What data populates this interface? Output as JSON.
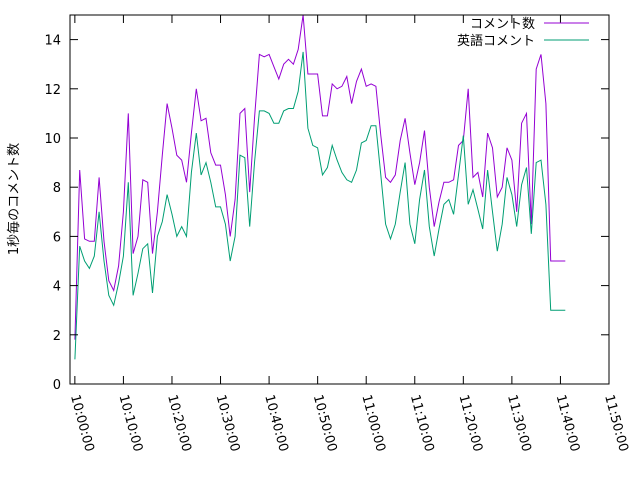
{
  "chart_data": {
    "type": "line",
    "title": "",
    "xlabel": "",
    "ylabel": "1秒毎のコメント数",
    "x_unit_seconds": 60,
    "x_start": "10:00:00",
    "x_ticks": [
      "10:00:00",
      "10:10:00",
      "10:20:00",
      "10:30:00",
      "10:40:00",
      "10:50:00",
      "11:00:00",
      "11:10:00",
      "11:20:00",
      "11:30:00",
      "11:40:00",
      "11:50:00"
    ],
    "x_range": [
      "09:59:00",
      "11:50:00"
    ],
    "ylim": [
      0,
      15
    ],
    "y_ticks": [
      0,
      2,
      4,
      6,
      8,
      10,
      12,
      14
    ],
    "legend_position": "top-right",
    "grid": false,
    "series": [
      {
        "name": "コメント数",
        "color": "#9400d3",
        "x": [
          "10:00:00",
          "10:01:00",
          "10:02:00",
          "10:03:00",
          "10:04:00",
          "10:05:00",
          "10:06:00",
          "10:07:00",
          "10:08:00",
          "10:09:00",
          "10:10:00",
          "10:11:00",
          "10:12:00",
          "10:13:00",
          "10:14:00",
          "10:15:00",
          "10:16:00",
          "10:17:00",
          "10:18:00",
          "10:19:00",
          "10:20:00",
          "10:21:00",
          "10:22:00",
          "10:23:00",
          "10:24:00",
          "10:25:00",
          "10:26:00",
          "10:27:00",
          "10:28:00",
          "10:29:00",
          "10:30:00",
          "10:31:00",
          "10:32:00",
          "10:33:00",
          "10:34:00",
          "10:35:00",
          "10:36:00",
          "10:37:00",
          "10:38:00",
          "10:39:00",
          "10:40:00",
          "10:41:00",
          "10:42:00",
          "10:43:00",
          "10:44:00",
          "10:45:00",
          "10:46:00",
          "10:47:00",
          "10:48:00",
          "10:49:00",
          "10:50:00",
          "10:51:00",
          "10:52:00",
          "10:53:00",
          "10:54:00",
          "10:55:00",
          "10:56:00",
          "10:57:00",
          "10:58:00",
          "10:59:00",
          "11:00:00",
          "11:01:00",
          "11:02:00",
          "11:03:00",
          "11:04:00",
          "11:05:00",
          "11:06:00",
          "11:07:00",
          "11:08:00",
          "11:09:00",
          "11:10:00",
          "11:11:00",
          "11:12:00",
          "11:13:00",
          "11:14:00",
          "11:15:00",
          "11:16:00",
          "11:17:00",
          "11:18:00",
          "11:19:00",
          "11:20:00",
          "11:21:00",
          "11:22:00",
          "11:23:00",
          "11:24:00",
          "11:25:00",
          "11:26:00",
          "11:27:00",
          "11:28:00",
          "11:29:00",
          "11:30:00",
          "11:31:00",
          "11:32:00",
          "11:33:00",
          "11:34:00",
          "11:35:00",
          "11:36:00",
          "11:37:00",
          "11:38:00",
          "11:39:00",
          "11:40:00",
          "11:41:00"
        ],
        "values": [
          1.8,
          8.7,
          5.9,
          5.8,
          5.8,
          8.4,
          5.8,
          4.2,
          3.8,
          4.8,
          7.0,
          11.0,
          5.3,
          6.0,
          8.3,
          8.2,
          5.3,
          7.0,
          9.3,
          11.4,
          10.4,
          9.3,
          9.1,
          8.2,
          10.2,
          12.0,
          10.7,
          10.8,
          9.4,
          8.9,
          8.9,
          7.7,
          6.0,
          7.5,
          11.0,
          11.2,
          7.8,
          10.8,
          13.4,
          13.3,
          13.4,
          12.9,
          12.4,
          13.0,
          13.2,
          13.0,
          13.6,
          15.0,
          12.6,
          12.6,
          12.6,
          10.9,
          10.9,
          12.2,
          12.0,
          12.1,
          12.5,
          11.4,
          12.3,
          12.8,
          12.1,
          12.2,
          12.1,
          10.1,
          8.4,
          8.2,
          8.5,
          9.9,
          10.8,
          9.4,
          8.1,
          9.0,
          10.3,
          8.0,
          6.4,
          7.4,
          8.2,
          8.2,
          8.3,
          9.7,
          9.9,
          12.0,
          8.4,
          8.6,
          7.6,
          10.2,
          9.6,
          7.6,
          8.0,
          9.6,
          9.1,
          7.0,
          10.6,
          11.0,
          6.5,
          12.8,
          13.4,
          11.4,
          5.0,
          5.0,
          5.0,
          5.0
        ]
      },
      {
        "name": "英語コメント",
        "color": "#009e73",
        "x": [
          "10:00:00",
          "10:01:00",
          "10:02:00",
          "10:03:00",
          "10:04:00",
          "10:05:00",
          "10:06:00",
          "10:07:00",
          "10:08:00",
          "10:09:00",
          "10:10:00",
          "10:11:00",
          "10:12:00",
          "10:13:00",
          "10:14:00",
          "10:15:00",
          "10:16:00",
          "10:17:00",
          "10:18:00",
          "10:19:00",
          "10:20:00",
          "10:21:00",
          "10:22:00",
          "10:23:00",
          "10:24:00",
          "10:25:00",
          "10:26:00",
          "10:27:00",
          "10:28:00",
          "10:29:00",
          "10:30:00",
          "10:31:00",
          "10:32:00",
          "10:33:00",
          "10:34:00",
          "10:35:00",
          "10:36:00",
          "10:37:00",
          "10:38:00",
          "10:39:00",
          "10:40:00",
          "10:41:00",
          "10:42:00",
          "10:43:00",
          "10:44:00",
          "10:45:00",
          "10:46:00",
          "10:47:00",
          "10:48:00",
          "10:49:00",
          "10:50:00",
          "10:51:00",
          "10:52:00",
          "10:53:00",
          "10:54:00",
          "10:55:00",
          "10:56:00",
          "10:57:00",
          "10:58:00",
          "10:59:00",
          "11:00:00",
          "11:01:00",
          "11:02:00",
          "11:03:00",
          "11:04:00",
          "11:05:00",
          "11:06:00",
          "11:07:00",
          "11:08:00",
          "11:09:00",
          "11:10:00",
          "11:11:00",
          "11:12:00",
          "11:13:00",
          "11:14:00",
          "11:15:00",
          "11:16:00",
          "11:17:00",
          "11:18:00",
          "11:19:00",
          "11:20:00",
          "11:21:00",
          "11:22:00",
          "11:23:00",
          "11:24:00",
          "11:25:00",
          "11:26:00",
          "11:27:00",
          "11:28:00",
          "11:29:00",
          "11:30:00",
          "11:31:00",
          "11:32:00",
          "11:33:00",
          "11:34:00",
          "11:35:00",
          "11:36:00",
          "11:37:00",
          "11:38:00",
          "11:39:00",
          "11:40:00",
          "11:41:00"
        ],
        "values": [
          1.0,
          5.6,
          5.0,
          4.7,
          5.2,
          7.0,
          5.0,
          3.6,
          3.2,
          4.1,
          5.2,
          8.2,
          3.6,
          4.5,
          5.5,
          5.7,
          3.7,
          6.0,
          6.6,
          7.7,
          6.9,
          6.0,
          6.4,
          6.0,
          8.6,
          10.2,
          8.5,
          9.0,
          8.2,
          7.2,
          7.2,
          6.5,
          5.0,
          6.0,
          9.3,
          9.2,
          6.4,
          9.0,
          11.1,
          11.1,
          11.0,
          10.6,
          10.6,
          11.1,
          11.2,
          11.2,
          11.9,
          13.5,
          10.4,
          9.7,
          9.6,
          8.5,
          8.8,
          9.7,
          9.1,
          8.6,
          8.3,
          8.2,
          8.7,
          9.8,
          9.9,
          10.5,
          10.5,
          8.5,
          6.5,
          5.9,
          6.5,
          7.8,
          9.0,
          6.5,
          5.7,
          7.5,
          8.7,
          6.4,
          5.2,
          6.3,
          7.3,
          7.5,
          6.9,
          8.5,
          10.1,
          7.3,
          7.9,
          7.1,
          6.3,
          8.7,
          7.0,
          5.4,
          6.5,
          8.4,
          7.7,
          6.4,
          8.1,
          8.8,
          6.1,
          9.0,
          9.1,
          7.3,
          3.0,
          3.0,
          3.0,
          3.0
        ]
      }
    ]
  }
}
